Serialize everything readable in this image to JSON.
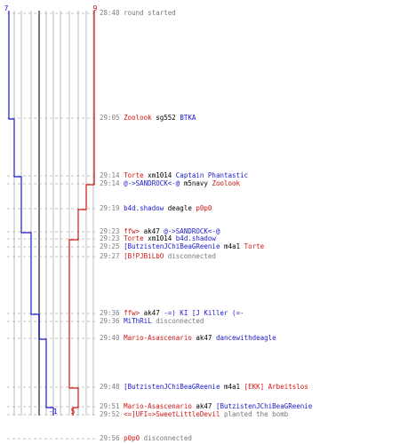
{
  "colors": {
    "blue": "#1a1acd",
    "red": "#d21414",
    "grid": "#bcbcbc",
    "gray": "#808080"
  },
  "score": {
    "ct_start": "7",
    "t_start": "9",
    "ct_end": "-1",
    "t_end": "5"
  },
  "events": [
    {
      "time": "28:48",
      "parts": [
        {
          "text": "round started",
          "c": "g"
        }
      ]
    },
    {
      "time": "29:05",
      "parts": [
        {
          "text": "Zoolook",
          "c": "r"
        },
        {
          "text": " sg552 ",
          "c": "k"
        },
        {
          "text": "BTKA",
          "c": "b"
        }
      ]
    },
    {
      "time": "29:14",
      "parts": [
        {
          "text": "Torte",
          "c": "r"
        },
        {
          "text": " xm1014 ",
          "c": "k"
        },
        {
          "text": "Captain Phantastic",
          "c": "b"
        }
      ]
    },
    {
      "time": "29:14",
      "parts": [
        {
          "text": "@->SANDROCK<-@",
          "c": "b"
        },
        {
          "text": " m5navy ",
          "c": "k"
        },
        {
          "text": "Zoolook",
          "c": "r"
        }
      ]
    },
    {
      "time": "29:19",
      "parts": [
        {
          "text": "b4d.shadow",
          "c": "b"
        },
        {
          "text": " deagle ",
          "c": "k"
        },
        {
          "text": "p0p0",
          "c": "r"
        }
      ]
    },
    {
      "time": "29:23",
      "parts": [
        {
          "text": "ffw>",
          "c": "r"
        },
        {
          "text": " ak47 ",
          "c": "k"
        },
        {
          "text": "@->SANDROCK<-@",
          "c": "b"
        }
      ]
    },
    {
      "time": "29:23",
      "parts": [
        {
          "text": "Torte",
          "c": "r"
        },
        {
          "text": " xm1014 ",
          "c": "k"
        },
        {
          "text": "b4d.shadow",
          "c": "b"
        }
      ]
    },
    {
      "time": "29:25",
      "parts": [
        {
          "text": "[ButzistenJChiBeaGReenie",
          "c": "b"
        },
        {
          "text": " m4a1 ",
          "c": "k"
        },
        {
          "text": "Torte",
          "c": "r"
        }
      ]
    },
    {
      "time": "29:27",
      "parts": [
        {
          "text": "[B!PJBiLbO",
          "c": "r"
        },
        {
          "text": " disconnected",
          "c": "g"
        }
      ]
    },
    {
      "time": "29:36",
      "parts": [
        {
          "text": "ffw>",
          "c": "r"
        },
        {
          "text": " ak47 ",
          "c": "k"
        },
        {
          "text": "-=) KI [J Killer (=-",
          "c": "b"
        }
      ]
    },
    {
      "time": "29:36",
      "parts": [
        {
          "text": "MiThRiL",
          "c": "b"
        },
        {
          "text": " disconnected",
          "c": "g"
        }
      ]
    },
    {
      "time": "29:40",
      "parts": [
        {
          "text": "Mario-Asascenario",
          "c": "r"
        },
        {
          "text": " ak47 ",
          "c": "k"
        },
        {
          "text": "dancewithdeagle",
          "c": "b"
        }
      ]
    },
    {
      "time": "29:48",
      "parts": [
        {
          "text": "[ButzistenJChiBeaGReenie",
          "c": "b"
        },
        {
          "text": " m4a1 ",
          "c": "k"
        },
        {
          "text": "[EKK] Arbeitslos",
          "c": "r"
        }
      ]
    },
    {
      "time": "29:51",
      "parts": [
        {
          "text": "Mario-Asascenario",
          "c": "r"
        },
        {
          "text": " ak47 ",
          "c": "k"
        },
        {
          "text": "[ButzistenJChiBeaGReenie",
          "c": "b"
        }
      ]
    },
    {
      "time": "29:52",
      "parts": [
        {
          "text": "<=]UFI=>SweetLittleDevil",
          "c": "r"
        },
        {
          "text": " planted the bomb",
          "c": "g"
        }
      ]
    },
    {
      "time": "29:56",
      "parts": [
        {
          "text": "p0p0",
          "c": "r"
        },
        {
          "text": " disconnected",
          "c": "g"
        }
      ]
    }
  ]
}
